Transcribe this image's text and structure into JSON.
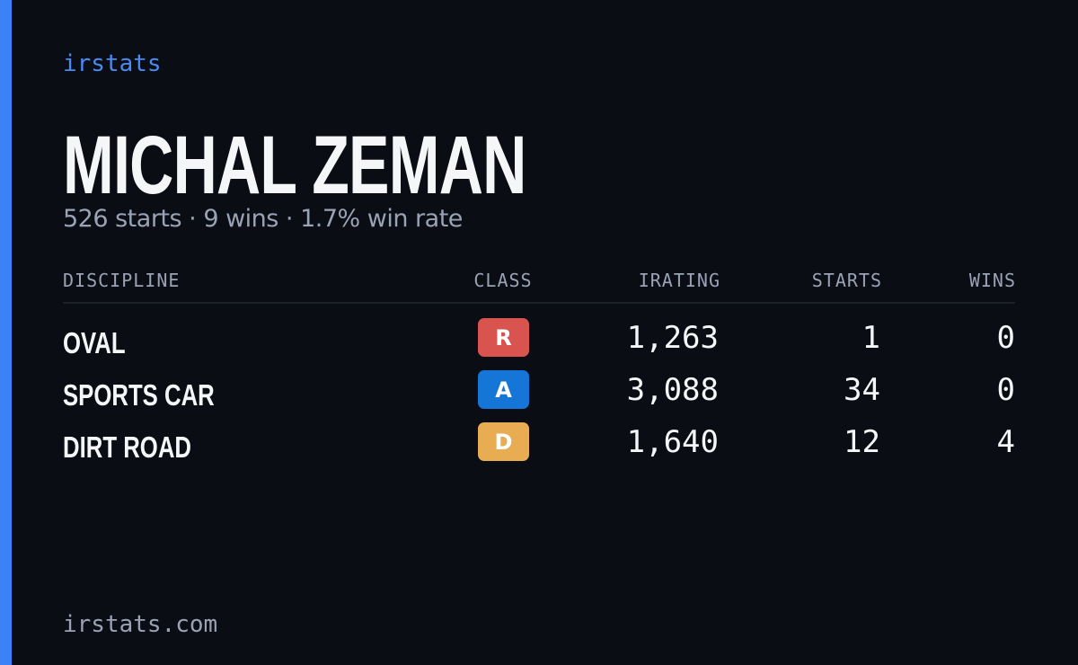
{
  "header": {
    "brand": "irstats",
    "title": "MICHAL ZEMAN",
    "subtitle": "526 starts · 9 wins · 1.7% win rate"
  },
  "table": {
    "columns": [
      "DISCIPLINE",
      "CLASS",
      "IRATING",
      "STARTS",
      "WINS"
    ],
    "rows": [
      {
        "discipline": "OVAL",
        "class": "R",
        "class_color": "#d9534f",
        "irating": "1,263",
        "starts": "1",
        "wins": "0"
      },
      {
        "discipline": "SPORTS CAR",
        "class": "A",
        "class_color": "#1576d8",
        "irating": "3,088",
        "starts": "34",
        "wins": "0"
      },
      {
        "discipline": "DIRT ROAD",
        "class": "D",
        "class_color": "#e8ac52",
        "irating": "1,640",
        "starts": "12",
        "wins": "4"
      }
    ]
  },
  "footer": {
    "site": "irstats.com"
  }
}
